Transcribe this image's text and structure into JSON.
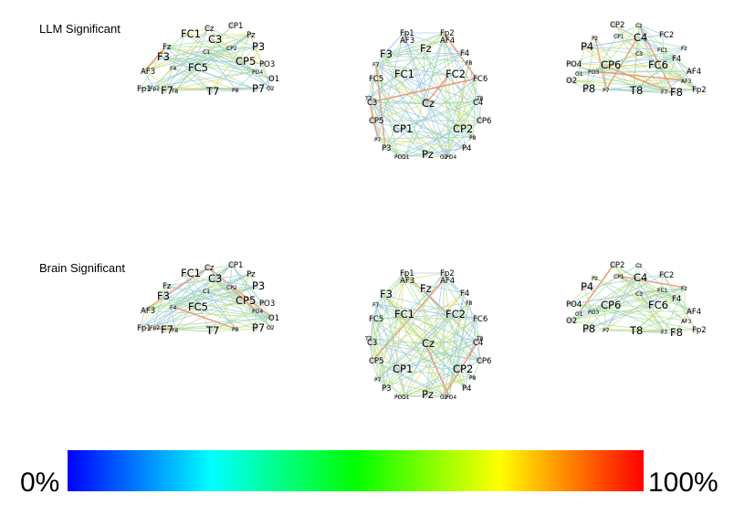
{
  "rows": [
    {
      "label": "LLM Significant",
      "edge_bias": 0.25
    },
    {
      "label": "Brain Significant",
      "edge_bias": 0.5
    }
  ],
  "views": [
    {
      "view": "left",
      "electrodes": [
        {
          "name": "FC1",
          "size": "med"
        },
        {
          "name": "Cz",
          "size": "small"
        },
        {
          "name": "CP1",
          "size": "small"
        },
        {
          "name": "Pz",
          "size": "small"
        },
        {
          "name": "Fz",
          "size": "small"
        },
        {
          "name": "C3",
          "size": "med"
        },
        {
          "name": "CP2",
          "size": "tiny"
        },
        {
          "name": "P3",
          "size": "med"
        },
        {
          "name": "F3",
          "size": "med"
        },
        {
          "name": "C1",
          "size": "tiny"
        },
        {
          "name": "CP5",
          "size": "med"
        },
        {
          "name": "PO3",
          "size": "small"
        },
        {
          "name": "AF3",
          "size": "small"
        },
        {
          "name": "F4",
          "size": "tiny"
        },
        {
          "name": "FC5",
          "size": "med"
        },
        {
          "name": "PO4",
          "size": "tiny"
        },
        {
          "name": "O1",
          "size": "small"
        },
        {
          "name": "Fp1",
          "size": "small"
        },
        {
          "name": "Fp2",
          "size": "tiny"
        },
        {
          "name": "F7",
          "size": "med"
        },
        {
          "name": "F8",
          "size": "tiny"
        },
        {
          "name": "T7",
          "size": "med"
        },
        {
          "name": "P8",
          "size": "tiny"
        },
        {
          "name": "P7",
          "size": "med"
        },
        {
          "name": "O2",
          "size": "tiny"
        }
      ]
    },
    {
      "view": "top",
      "electrodes": [
        {
          "name": "Fp1",
          "size": "small"
        },
        {
          "name": "Fp2",
          "size": "small"
        },
        {
          "name": "AF3",
          "size": "small"
        },
        {
          "name": "AF4",
          "size": "small"
        },
        {
          "name": "F3",
          "size": "med"
        },
        {
          "name": "Fz",
          "size": "med"
        },
        {
          "name": "F4",
          "size": "small"
        },
        {
          "name": "F7",
          "size": "tiny"
        },
        {
          "name": "F8",
          "size": "tiny"
        },
        {
          "name": "FC5",
          "size": "small"
        },
        {
          "name": "FC1",
          "size": "med"
        },
        {
          "name": "FC2",
          "size": "med"
        },
        {
          "name": "FC6",
          "size": "small"
        },
        {
          "name": "T7",
          "size": "tiny"
        },
        {
          "name": "C3",
          "size": "small"
        },
        {
          "name": "Cz",
          "size": "med"
        },
        {
          "name": "C4",
          "size": "small"
        },
        {
          "name": "T8",
          "size": "tiny"
        },
        {
          "name": "CP5",
          "size": "small"
        },
        {
          "name": "CP1",
          "size": "med"
        },
        {
          "name": "CP2",
          "size": "med"
        },
        {
          "name": "CP6",
          "size": "small"
        },
        {
          "name": "P7",
          "size": "tiny"
        },
        {
          "name": "P8",
          "size": "tiny"
        },
        {
          "name": "P3",
          "size": "small"
        },
        {
          "name": "P4",
          "size": "small"
        },
        {
          "name": "PO3",
          "size": "tiny"
        },
        {
          "name": "O1",
          "size": "tiny"
        },
        {
          "name": "Pz",
          "size": "med"
        },
        {
          "name": "O2",
          "size": "tiny"
        },
        {
          "name": "PO4",
          "size": "tiny"
        }
      ]
    },
    {
      "view": "right",
      "electrodes": [
        {
          "name": "CP2",
          "size": "small"
        },
        {
          "name": "Cz",
          "size": "tiny"
        },
        {
          "name": "Pz",
          "size": "tiny"
        },
        {
          "name": "CP1",
          "size": "tiny"
        },
        {
          "name": "C4",
          "size": "med"
        },
        {
          "name": "FC2",
          "size": "small"
        },
        {
          "name": "P4",
          "size": "med"
        },
        {
          "name": "Fz",
          "size": "tiny"
        },
        {
          "name": "FC1",
          "size": "tiny"
        },
        {
          "name": "C3",
          "size": "tiny"
        },
        {
          "name": "F4",
          "size": "small"
        },
        {
          "name": "CP6",
          "size": "med"
        },
        {
          "name": "PO4",
          "size": "small"
        },
        {
          "name": "FC6",
          "size": "med"
        },
        {
          "name": "AF4",
          "size": "small"
        },
        {
          "name": "O1",
          "size": "tiny"
        },
        {
          "name": "O2",
          "size": "small"
        },
        {
          "name": "P8",
          "size": "med"
        },
        {
          "name": "T8",
          "size": "med"
        },
        {
          "name": "F8",
          "size": "med"
        },
        {
          "name": "F7",
          "size": "tiny"
        },
        {
          "name": "Fp2",
          "size": "small"
        },
        {
          "name": "P7",
          "size": "tiny"
        },
        {
          "name": "PO3",
          "size": "tiny"
        },
        {
          "name": "AF3",
          "size": "tiny"
        }
      ]
    }
  ],
  "colorbar": {
    "min_label": "0%",
    "max_label": "100%",
    "stops": [
      "#0000ff",
      "#00ffff",
      "#00ff00",
      "#ffff00",
      "#ff0000"
    ]
  }
}
